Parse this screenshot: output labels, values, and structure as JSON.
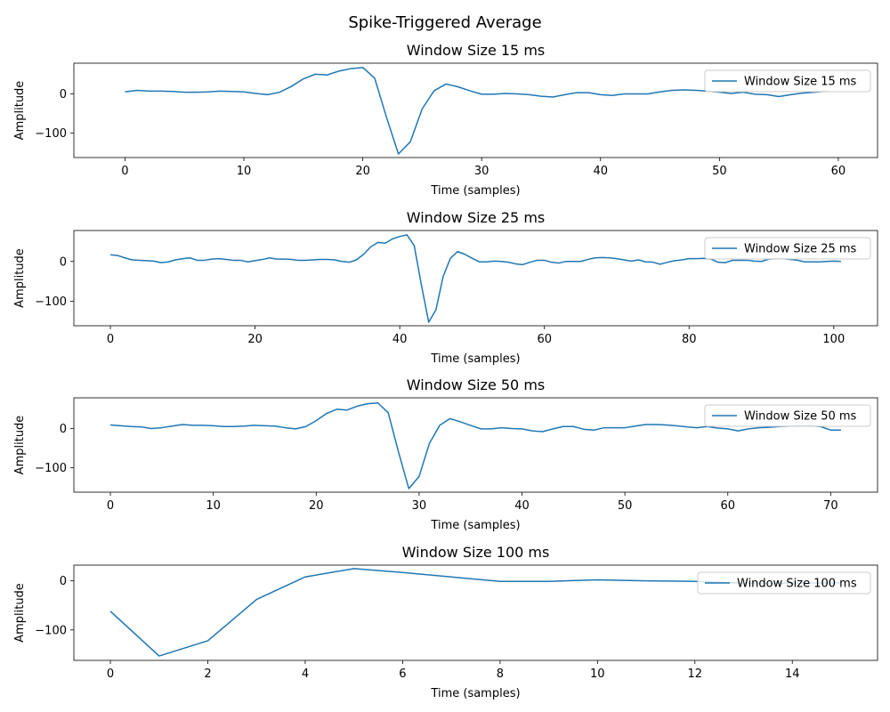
{
  "figure": {
    "suptitle": "Spike-Triggered Average",
    "line_color": "#1f77b4"
  },
  "chart_data": [
    {
      "type": "line",
      "title": "Window Size 15 ms",
      "xlabel": "Time (samples)",
      "ylabel": "Amplitude",
      "legend": "top-right",
      "xlim": [
        -4.3,
        63.3
      ],
      "ylim": [
        -162,
        78
      ],
      "xticks": [
        0,
        10,
        20,
        30,
        40,
        50,
        60
      ],
      "yticks": [
        -100,
        0
      ],
      "grid": false,
      "series": [
        {
          "name": "Window Size 15 ms",
          "x": [
            0,
            1,
            2,
            3,
            4,
            5,
            6,
            7,
            8,
            9,
            10,
            11,
            12,
            13,
            14,
            15,
            16,
            17,
            18,
            19,
            20,
            21,
            22,
            23,
            24,
            25,
            26,
            27,
            28,
            29,
            30,
            31,
            32,
            33,
            34,
            35,
            36,
            37,
            38,
            39,
            40,
            41,
            42,
            43,
            44,
            45,
            46,
            47,
            48,
            49,
            50,
            51,
            52,
            53,
            54,
            55,
            56,
            57,
            58,
            59
          ],
          "y": [
            5,
            9,
            7,
            7,
            6,
            4,
            4,
            5,
            7,
            6,
            5,
            1,
            -2,
            4,
            19,
            38,
            50,
            48,
            58,
            64,
            67,
            40,
            -60,
            -153,
            -122,
            -38,
            8,
            25,
            18,
            8,
            -1,
            -1,
            1,
            0,
            -2,
            -6,
            -8,
            -2,
            3,
            3,
            -2,
            -4,
            0,
            0,
            0,
            5,
            9,
            10,
            9,
            7,
            4,
            1,
            4,
            -1,
            -2,
            -7,
            -2,
            2,
            4,
            7
          ]
        }
      ]
    },
    {
      "type": "line",
      "title": "Window Size 25 ms",
      "xlabel": "Time (samples)",
      "ylabel": "Amplitude",
      "legend": "top-right",
      "xlim": [
        -5.05,
        106.05
      ],
      "ylim": [
        -162,
        78
      ],
      "xticks": [
        0,
        20,
        40,
        60,
        80,
        100
      ],
      "yticks": [
        -100,
        0
      ],
      "grid": false,
      "series": [
        {
          "name": "Window Size 25 ms",
          "x": [
            0,
            1,
            2,
            3,
            4,
            5,
            6,
            7,
            8,
            9,
            10,
            11,
            12,
            13,
            14,
            15,
            16,
            17,
            18,
            19,
            20,
            21,
            22,
            23,
            24,
            25,
            26,
            27,
            28,
            29,
            30,
            31,
            32,
            33,
            34,
            35,
            36,
            37,
            38,
            39,
            40,
            41,
            42,
            43,
            44,
            45,
            46,
            47,
            48,
            49,
            50,
            51,
            52,
            53,
            54,
            55,
            56,
            57,
            58,
            59,
            60,
            61,
            62,
            63,
            64,
            65,
            66,
            67,
            68,
            69,
            70,
            71,
            72,
            73,
            74,
            75,
            76,
            77,
            78,
            79,
            80,
            81,
            82,
            83,
            84,
            85,
            86,
            87,
            88,
            89,
            90,
            91,
            92,
            93,
            94,
            95,
            96,
            97,
            98,
            99,
            100,
            101
          ],
          "y": [
            17,
            15,
            9,
            4,
            3,
            2,
            1,
            -3,
            -1,
            4,
            7,
            9,
            3,
            3,
            6,
            7,
            5,
            3,
            3,
            -1,
            2,
            5,
            9,
            6,
            6,
            5,
            3,
            3,
            4,
            5,
            5,
            4,
            0,
            -2,
            4,
            18,
            37,
            48,
            46,
            57,
            63,
            67,
            40,
            -60,
            -153,
            -122,
            -38,
            8,
            25,
            18,
            8,
            -1,
            -1,
            1,
            0,
            -2,
            -6,
            -8,
            -2,
            3,
            3,
            -2,
            -4,
            0,
            0,
            0,
            5,
            9,
            10,
            9,
            7,
            4,
            1,
            4,
            -1,
            -2,
            -7,
            -2,
            2,
            4,
            7,
            7,
            8,
            6,
            -2,
            -3,
            3,
            3,
            3,
            1,
            0,
            6,
            7,
            7,
            5,
            3,
            -1,
            -1,
            -1,
            0,
            1,
            0
          ]
        }
      ]
    },
    {
      "type": "line",
      "title": "Window Size 50 ms",
      "xlabel": "Time (samples)",
      "ylabel": "Amplitude",
      "legend": "top-right",
      "xlim": [
        -3.55,
        74.55
      ],
      "ylim": [
        -162,
        78
      ],
      "xticks": [
        0,
        10,
        20,
        30,
        40,
        50,
        60,
        70
      ],
      "yticks": [
        -100,
        0
      ],
      "grid": false,
      "series": [
        {
          "name": "Window Size 50 ms",
          "x": [
            0,
            1,
            2,
            3,
            4,
            5,
            6,
            7,
            8,
            9,
            10,
            11,
            12,
            13,
            14,
            15,
            16,
            17,
            18,
            19,
            20,
            21,
            22,
            23,
            24,
            25,
            26,
            27,
            28,
            29,
            30,
            31,
            32,
            33,
            34,
            35,
            36,
            37,
            38,
            39,
            40,
            41,
            42,
            43,
            44,
            45,
            46,
            47,
            48,
            49,
            50,
            51,
            52,
            53,
            54,
            55,
            56,
            57,
            58,
            59,
            60,
            61,
            62,
            63,
            64,
            65,
            66,
            67,
            68,
            69,
            70,
            71
          ],
          "y": [
            9,
            7,
            5,
            4,
            0,
            2,
            6,
            10,
            8,
            8,
            7,
            5,
            5,
            6,
            8,
            7,
            6,
            2,
            -1,
            5,
            20,
            38,
            49,
            47,
            57,
            63,
            65,
            40,
            -60,
            -153,
            -122,
            -38,
            8,
            25,
            17,
            8,
            -1,
            -1,
            2,
            0,
            -1,
            -6,
            -8,
            -1,
            5,
            5,
            -2,
            -4,
            2,
            2,
            2,
            6,
            10,
            10,
            9,
            7,
            4,
            2,
            5,
            1,
            -1,
            -6,
            -1,
            2,
            3,
            5,
            6,
            7,
            7,
            5,
            -4,
            -4
          ]
        }
      ]
    },
    {
      "type": "line",
      "title": "Window Size 100 ms",
      "xlabel": "Time (samples)",
      "ylabel": "Amplitude",
      "legend": "top-right",
      "xlim": [
        -0.75,
        15.75
      ],
      "ylim": [
        -162,
        32
      ],
      "xticks": [
        0,
        2,
        4,
        6,
        8,
        10,
        12,
        14
      ],
      "yticks": [
        -100,
        0
      ],
      "grid": false,
      "series": [
        {
          "name": "Window Size 100 ms",
          "x": [
            0,
            1,
            2,
            3,
            4,
            5,
            6,
            7,
            8,
            9,
            10,
            11,
            12,
            13,
            14,
            15
          ],
          "y": [
            -62,
            -153,
            -122,
            -38,
            8,
            25,
            17,
            8,
            -1,
            -1,
            2,
            0,
            -1,
            -5,
            -5,
            -4
          ]
        }
      ]
    }
  ]
}
